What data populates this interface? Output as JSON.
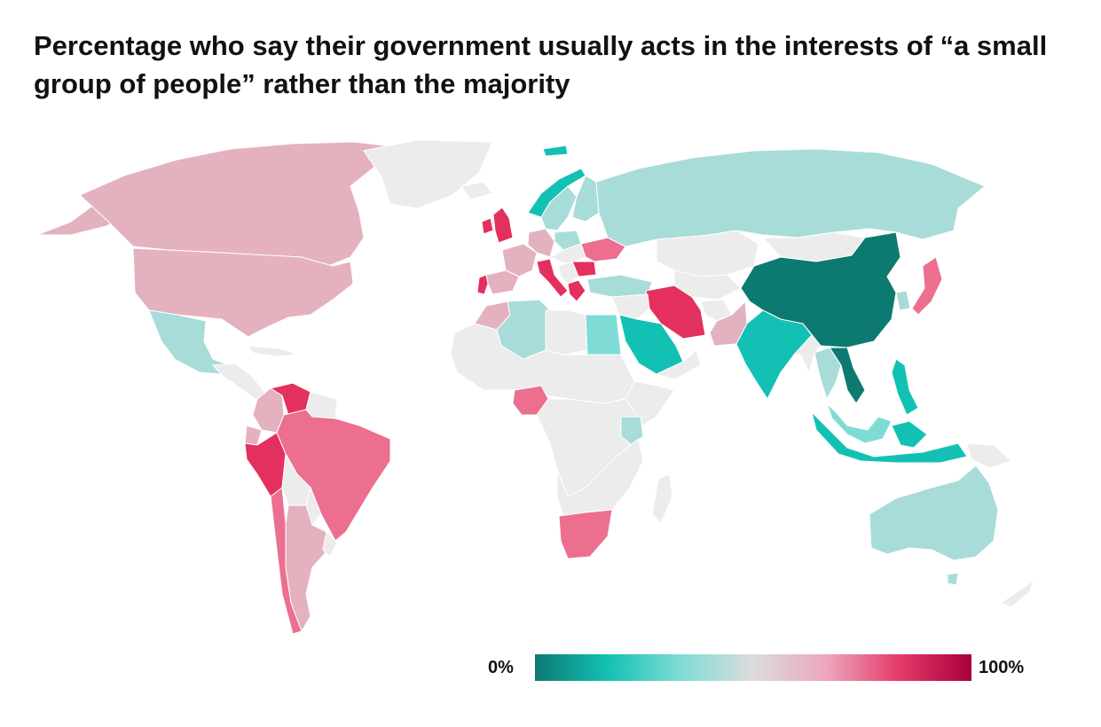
{
  "title": "Percentage who say their government usually acts in the interests of “a small group of people” rather than the majority",
  "legend": {
    "min_label": "0%",
    "max_label": "100%",
    "scale_min": 0,
    "scale_max": 100,
    "gradient_stops": [
      "#0d7a72",
      "#13c1b4",
      "#7fdcd5",
      "#dcdcdc",
      "#eca7bd",
      "#e63a6b",
      "#a8003a"
    ]
  },
  "colors": {
    "no_data": "#ececec",
    "water": "#ffffff"
  },
  "countries": [
    {
      "id": "canada",
      "color": "#e4b1bf"
    },
    {
      "id": "usa",
      "color": "#e4b1bf"
    },
    {
      "id": "alaska",
      "color": "#e4b1bf"
    },
    {
      "id": "greenland",
      "color": "#ececec"
    },
    {
      "id": "mexico",
      "color": "#a8dcd8"
    },
    {
      "id": "central-america",
      "color": "#ececec"
    },
    {
      "id": "colombia",
      "color": "#e4b1bf"
    },
    {
      "id": "venezuela",
      "color": "#e4305f"
    },
    {
      "id": "guyanas",
      "color": "#ececec"
    },
    {
      "id": "brazil",
      "color": "#ec6f90"
    },
    {
      "id": "peru",
      "color": "#e4305f"
    },
    {
      "id": "ecuador",
      "color": "#e4b1bf"
    },
    {
      "id": "bolivia",
      "color": "#ececec"
    },
    {
      "id": "paraguay",
      "color": "#ececec"
    },
    {
      "id": "chile",
      "color": "#ec6f90"
    },
    {
      "id": "argentina",
      "color": "#e4b1bf"
    },
    {
      "id": "uruguay",
      "color": "#ececec"
    },
    {
      "id": "uk",
      "color": "#e4305f"
    },
    {
      "id": "ireland",
      "color": "#e4305f"
    },
    {
      "id": "iceland",
      "color": "#ececec"
    },
    {
      "id": "norway",
      "color": "#13c1b4"
    },
    {
      "id": "sweden",
      "color": "#a8dcd8"
    },
    {
      "id": "finland",
      "color": "#a8dcd8"
    },
    {
      "id": "spain",
      "color": "#e4b1bf"
    },
    {
      "id": "portugal",
      "color": "#e4305f"
    },
    {
      "id": "france",
      "color": "#e4b1bf"
    },
    {
      "id": "germany",
      "color": "#e4b1bf"
    },
    {
      "id": "italy",
      "color": "#e4305f"
    },
    {
      "id": "poland",
      "color": "#a8dcd8"
    },
    {
      "id": "ukraine",
      "color": "#ec6f90"
    },
    {
      "id": "romania",
      "color": "#e4305f"
    },
    {
      "id": "greece",
      "color": "#e4305f"
    },
    {
      "id": "turkey",
      "color": "#a8dcd8"
    },
    {
      "id": "russia",
      "color": "#a8dcd8"
    },
    {
      "id": "kazakhstan",
      "color": "#ececec"
    },
    {
      "id": "morocco",
      "color": "#e4b1bf"
    },
    {
      "id": "algeria",
      "color": "#a8dcd8"
    },
    {
      "id": "north-africa-other",
      "color": "#ececec"
    },
    {
      "id": "egypt",
      "color": "#7fdcd5"
    },
    {
      "id": "saudi-arabia",
      "color": "#13c1b4"
    },
    {
      "id": "iran",
      "color": "#e4305f"
    },
    {
      "id": "pakistan",
      "color": "#e4b1bf"
    },
    {
      "id": "india",
      "color": "#13c1b4"
    },
    {
      "id": "china",
      "color": "#0d7a72"
    },
    {
      "id": "mongolia",
      "color": "#ececec"
    },
    {
      "id": "japan",
      "color": "#ec6f90"
    },
    {
      "id": "south-korea",
      "color": "#a8dcd8"
    },
    {
      "id": "vietnam",
      "color": "#0d7a72"
    },
    {
      "id": "thailand",
      "color": "#a8dcd8"
    },
    {
      "id": "philippines",
      "color": "#13c1b4"
    },
    {
      "id": "malaysia",
      "color": "#7fdcd5"
    },
    {
      "id": "indonesia",
      "color": "#13c1b4"
    },
    {
      "id": "papua",
      "color": "#ececec"
    },
    {
      "id": "australia",
      "color": "#a8dcd8"
    },
    {
      "id": "new-zealand",
      "color": "#ececec"
    },
    {
      "id": "nigeria",
      "color": "#ec6f90"
    },
    {
      "id": "kenya",
      "color": "#a8dcd8"
    },
    {
      "id": "south-africa",
      "color": "#ec6f90"
    },
    {
      "id": "sub-saharan-other",
      "color": "#ececec"
    },
    {
      "id": "madagascar",
      "color": "#ececec"
    }
  ]
}
